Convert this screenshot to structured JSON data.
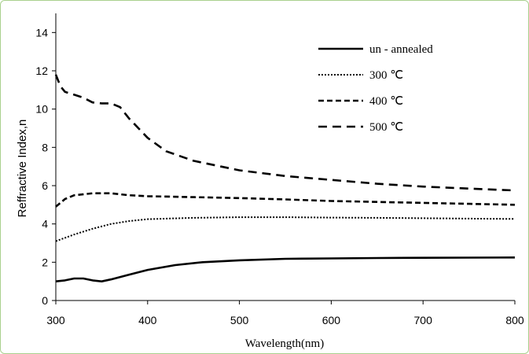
{
  "chart_data": {
    "type": "line",
    "xlabel": "Wavelength(nm)",
    "ylabel": "Reffractive Index,n",
    "xlim": [
      300,
      800
    ],
    "ylim": [
      0,
      15
    ],
    "xticks": [
      300,
      400,
      500,
      600,
      700,
      800
    ],
    "yticks": [
      0,
      2,
      4,
      6,
      8,
      10,
      12,
      14
    ],
    "grid": false,
    "legend_position": "top-right",
    "series": [
      {
        "name": "un - annealed",
        "style": "solid",
        "x": [
          300,
          310,
          320,
          330,
          340,
          350,
          360,
          380,
          400,
          430,
          460,
          500,
          550,
          600,
          650,
          700,
          750,
          800
        ],
        "y": [
          1.0,
          1.05,
          1.15,
          1.15,
          1.05,
          1.0,
          1.1,
          1.35,
          1.6,
          1.85,
          2.0,
          2.1,
          2.18,
          2.2,
          2.22,
          2.23,
          2.24,
          2.25
        ]
      },
      {
        "name": "300 ℃",
        "style": "dotted",
        "x": [
          300,
          320,
          340,
          360,
          380,
          400,
          450,
          500,
          550,
          600,
          650,
          700,
          750,
          800
        ],
        "y": [
          3.1,
          3.45,
          3.75,
          4.0,
          4.15,
          4.25,
          4.32,
          4.35,
          4.35,
          4.33,
          4.32,
          4.3,
          4.28,
          4.26
        ]
      },
      {
        "name": "400 ℃",
        "style": "dashed",
        "x": [
          300,
          310,
          320,
          340,
          360,
          380,
          400,
          450,
          500,
          550,
          600,
          650,
          700,
          750,
          800
        ],
        "y": [
          4.9,
          5.3,
          5.5,
          5.6,
          5.6,
          5.5,
          5.45,
          5.4,
          5.35,
          5.28,
          5.2,
          5.15,
          5.1,
          5.05,
          5.0
        ]
      },
      {
        "name": "500 ℃",
        "style": "longdash",
        "x": [
          300,
          305,
          310,
          320,
          330,
          340,
          350,
          360,
          370,
          380,
          400,
          420,
          450,
          480,
          500,
          550,
          600,
          650,
          700,
          750,
          800
        ],
        "y": [
          11.8,
          11.2,
          10.9,
          10.75,
          10.6,
          10.35,
          10.3,
          10.3,
          10.1,
          9.5,
          8.5,
          7.8,
          7.3,
          7.0,
          6.8,
          6.5,
          6.3,
          6.1,
          5.95,
          5.85,
          5.75
        ]
      }
    ]
  }
}
